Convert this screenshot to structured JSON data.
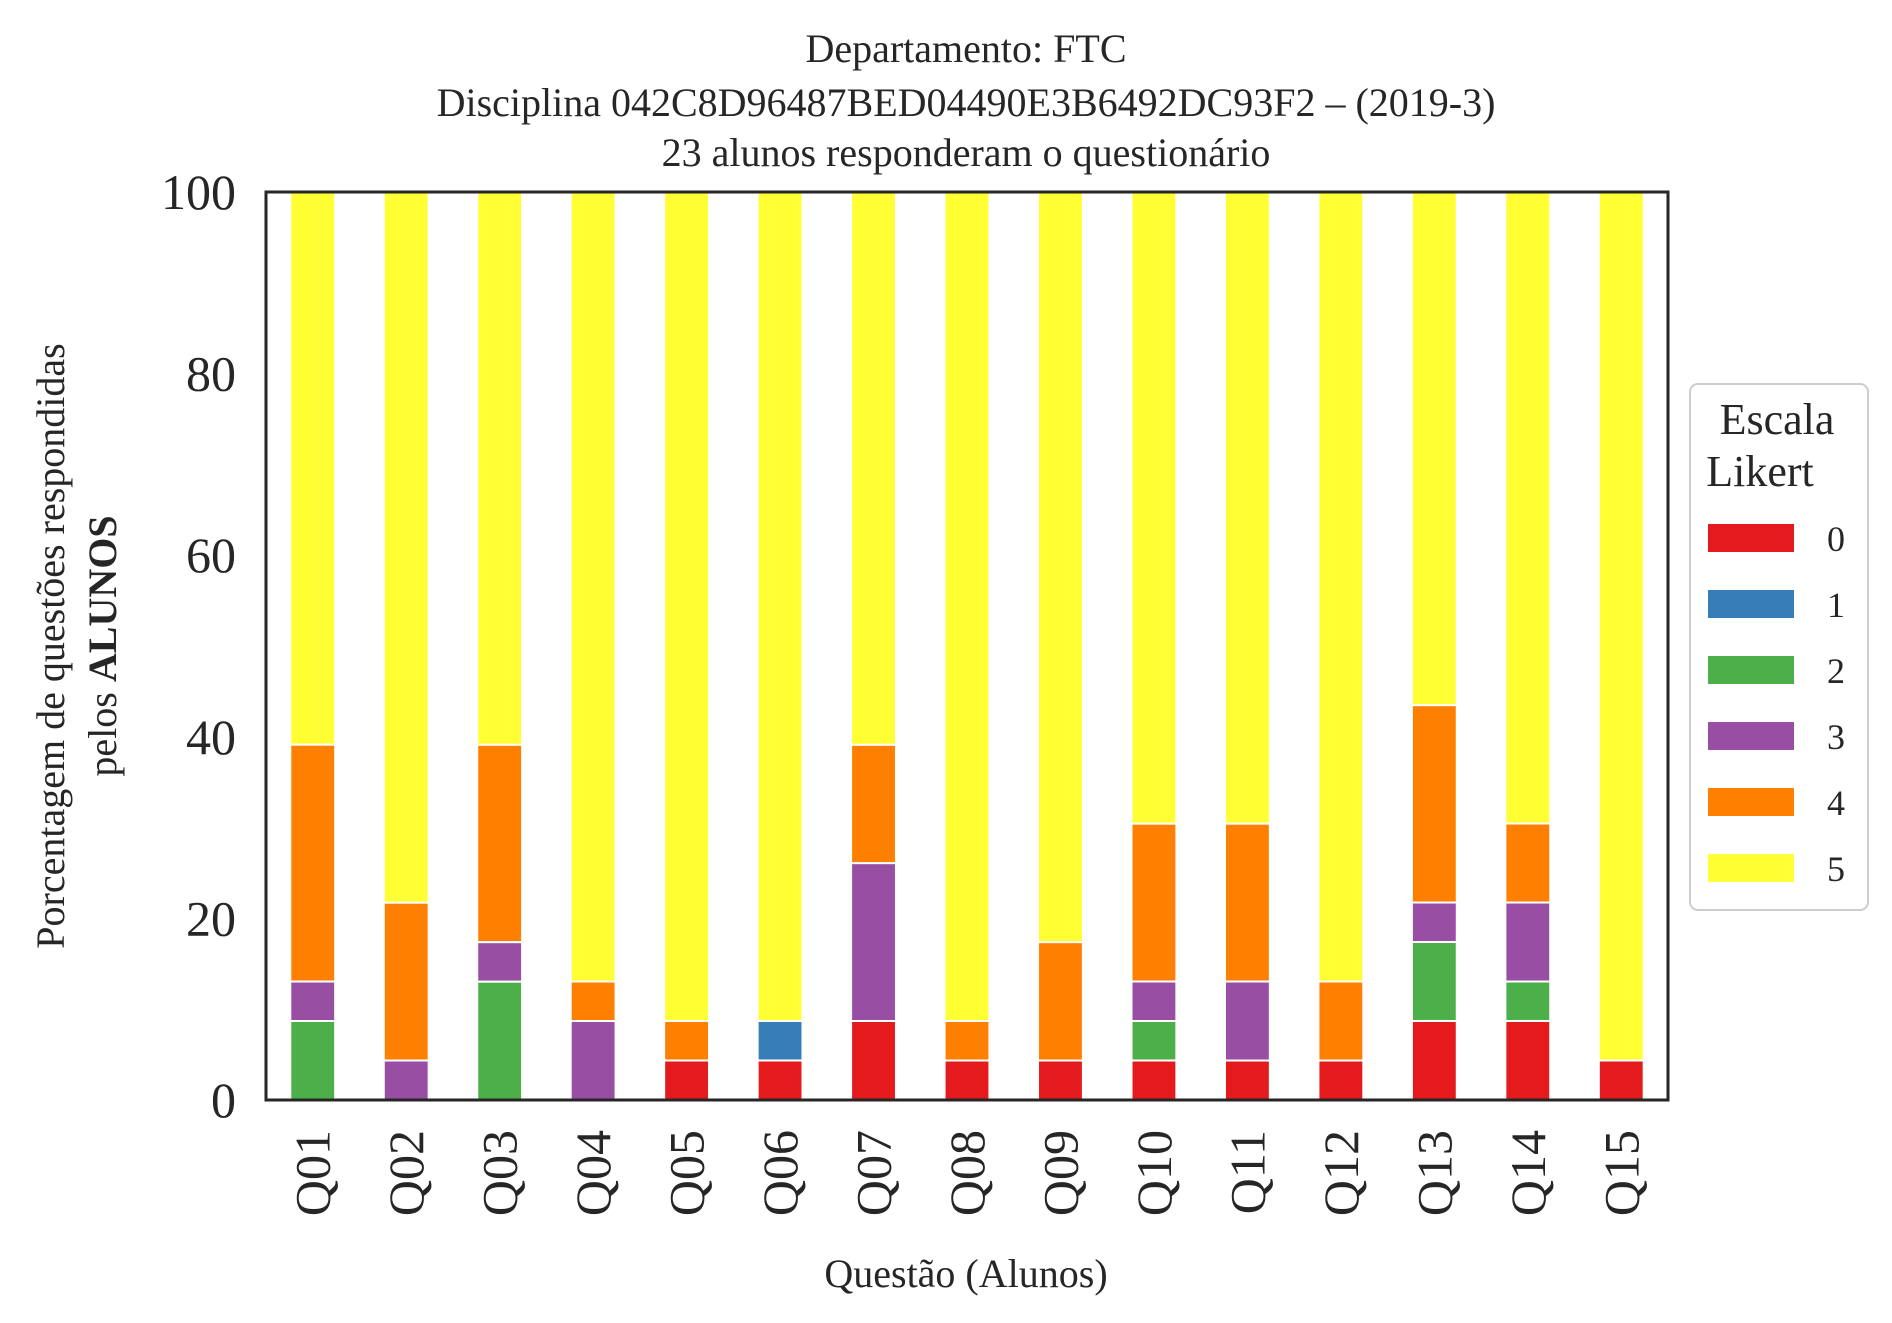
{
  "chart_data": {
    "type": "bar",
    "stacked": true,
    "title_lines": [
      "Departamento: FTC",
      "Disciplina 042C8D96487BED04490E3B6492DC93F2 – (2019-3)",
      "23 alunos responderam o questionário"
    ],
    "xlabel": "Questão (Alunos)",
    "ylabel_line1": "Porcentagem de questões respondidas",
    "ylabel_line2_prefix": "pelos ",
    "ylabel_line2_bold": "ALUNOS",
    "ylim": [
      0,
      100
    ],
    "yticks": [
      "0",
      "20",
      "40",
      "60",
      "80",
      "100"
    ],
    "grid": false,
    "legend": {
      "title_line1": "Escala",
      "title_line2": "Likert",
      "placement": "center-right outside"
    },
    "categories": [
      "Q01",
      "Q02",
      "Q03",
      "Q04",
      "Q05",
      "Q06",
      "Q07",
      "Q08",
      "Q09",
      "Q10",
      "Q11",
      "Q12",
      "Q13",
      "Q14",
      "Q15"
    ],
    "series": [
      {
        "name": "0",
        "color": "#e41a1c",
        "values": [
          0,
          0,
          0,
          0,
          4.35,
          4.35,
          8.7,
          4.35,
          4.35,
          4.35,
          4.35,
          4.35,
          8.7,
          8.7,
          4.35
        ]
      },
      {
        "name": "1",
        "color": "#377eb8",
        "values": [
          0,
          0,
          0,
          0,
          0,
          4.35,
          0,
          0,
          0,
          0,
          0,
          0,
          0,
          0,
          0
        ]
      },
      {
        "name": "2",
        "color": "#4daf4a",
        "values": [
          8.7,
          0,
          13.04,
          0,
          0,
          0,
          0,
          0,
          0,
          4.35,
          0,
          0,
          8.7,
          4.35,
          0
        ]
      },
      {
        "name": "3",
        "color": "#984ea3",
        "values": [
          4.35,
          4.35,
          4.35,
          8.7,
          0,
          0,
          17.39,
          0,
          0,
          4.35,
          8.7,
          0,
          4.35,
          8.7,
          0
        ]
      },
      {
        "name": "4",
        "color": "#ff7f00",
        "values": [
          26.09,
          17.39,
          21.74,
          4.35,
          4.35,
          0,
          13.04,
          4.35,
          13.04,
          17.39,
          17.39,
          8.7,
          21.74,
          8.7,
          0
        ]
      },
      {
        "name": "5",
        "color": "#ffff33",
        "values": [
          60.86,
          78.26,
          60.87,
          86.95,
          91.3,
          91.3,
          60.87,
          91.3,
          82.61,
          69.56,
          69.56,
          86.95,
          56.51,
          69.55,
          95.65
        ]
      }
    ]
  }
}
